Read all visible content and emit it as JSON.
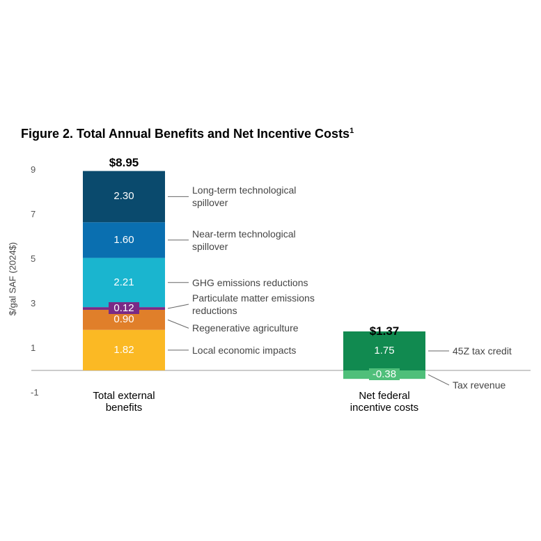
{
  "chart_data": {
    "type": "stacked_bar",
    "title": "Figure 2. Total Annual Benefits and Net Incentive Costs",
    "title_superscript": "1",
    "y_label": "$/gal SAF (2024$)",
    "categories": [
      "Total external benefits",
      "Net federal incentive costs"
    ],
    "ylim": [
      -1,
      9
    ],
    "yticks": [
      9,
      7,
      5,
      3,
      1,
      -1
    ],
    "series": [
      {
        "name": "Local economic impacts",
        "color": "#fbb924",
        "values": [
          1.82,
          null
        ],
        "value_labels": [
          "1.82",
          null
        ]
      },
      {
        "name": "Regenerative agriculture",
        "color": "#e07f2a",
        "values": [
          0.9,
          null
        ],
        "value_labels": [
          "0.90",
          null
        ]
      },
      {
        "name": "Particulate matter emissions reductions",
        "color": "#7a2a86",
        "values": [
          0.12,
          null
        ],
        "value_labels": [
          "0.12",
          null
        ]
      },
      {
        "name": "GHG emissions reductions",
        "color": "#1ab5cf",
        "values": [
          2.21,
          null
        ],
        "value_labels": [
          "2.21",
          null
        ]
      },
      {
        "name": "Near-term technological spillover",
        "color": "#0a6fb0",
        "values": [
          1.6,
          null
        ],
        "value_labels": [
          "1.60",
          null
        ]
      },
      {
        "name": "Long-term technological spillover",
        "color": "#0a4a6d",
        "values": [
          2.3,
          null
        ],
        "value_labels": [
          "2.30",
          null
        ]
      },
      {
        "name": "45Z tax credit",
        "color": "#118a50",
        "values": [
          null,
          1.75
        ],
        "value_labels": [
          null,
          "1.75"
        ]
      },
      {
        "name": "Tax revenue",
        "color": "#4fbf7a",
        "values": [
          null,
          -0.38
        ],
        "value_labels": [
          null,
          "-0.38"
        ]
      }
    ],
    "totals": {
      "values": [
        8.95,
        1.37
      ],
      "value_labels": [
        "$8.95",
        "$1.37"
      ]
    }
  }
}
